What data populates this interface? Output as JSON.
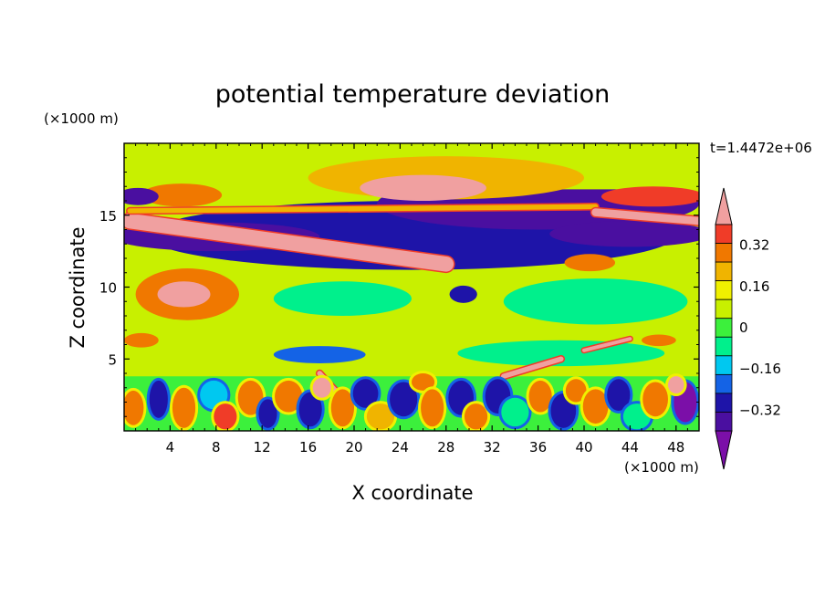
{
  "chart_data": {
    "type": "heatmap",
    "title": "potential temperature deviation",
    "xlabel": "X coordinate",
    "ylabel": "Z coordinate",
    "x_unit": "(×1000 m)",
    "y_unit": "(×1000 m)",
    "time_label": "t=1.4472e+06",
    "xlim": [
      0,
      50
    ],
    "ylim": [
      0,
      20
    ],
    "x_ticks": [
      4,
      8,
      12,
      16,
      20,
      24,
      28,
      32,
      36,
      40,
      44,
      48
    ],
    "y_ticks": [
      5,
      10,
      15
    ],
    "colorbar": {
      "levels": [
        -0.48,
        -0.4,
        -0.32,
        -0.24,
        -0.16,
        -0.08,
        0,
        0.08,
        0.16,
        0.24,
        0.32,
        0.4,
        0.48
      ],
      "colors": [
        "#7b0fa8",
        "#4a0fa0",
        "#1e14a8",
        "#1463e6",
        "#00c8f0",
        "#00f08c",
        "#3cf03c",
        "#c8f000",
        "#f0f000",
        "#f0b400",
        "#f07800",
        "#f03c28",
        "#f0a0a0"
      ],
      "labels": [
        "0.32",
        "0.16",
        "0",
        "−0.16",
        "−0.32"
      ],
      "label_values": [
        0.32,
        0.16,
        0,
        -0.16,
        -0.32
      ]
    },
    "regions": [
      {
        "shape": "band",
        "x": [
          0,
          50
        ],
        "z": [
          0,
          20
        ],
        "value": 0.04
      },
      {
        "shape": "band",
        "x": [
          0,
          50
        ],
        "z": [
          0,
          3.8
        ],
        "value": 0.0
      },
      {
        "shape": "band",
        "x": [
          0,
          50
        ],
        "z": [
          3.8,
          6.8
        ],
        "value": 0.06
      },
      {
        "shape": "ellipse",
        "cx": 25,
        "cz": 7.5,
        "rx": 11,
        "rz": 2.3,
        "value": 0.1
      },
      {
        "shape": "ellipse",
        "cx": 41,
        "cz": 9,
        "rx": 8,
        "rz": 1.6,
        "value": -0.12
      },
      {
        "shape": "ellipse",
        "cx": 19,
        "cz": 9.2,
        "rx": 6,
        "rz": 1.2,
        "value": -0.08
      },
      {
        "shape": "band",
        "x": [
          0,
          50
        ],
        "z": [
          10.6,
          11.4
        ],
        "value": 0.06
      },
      {
        "shape": "ellipse",
        "cx": 5.5,
        "cz": 9.5,
        "rx": 4.5,
        "rz": 1.8,
        "value": 0.3
      },
      {
        "shape": "ellipse",
        "cx": 5.2,
        "cz": 9.5,
        "rx": 2.3,
        "rz": 0.9,
        "value": 0.5
      },
      {
        "shape": "ellipse",
        "cx": 25,
        "cz": 13.6,
        "rx": 23,
        "rz": 2.4,
        "value": -0.34
      },
      {
        "shape": "ellipse",
        "cx": 36,
        "cz": 15.8,
        "rx": 14,
        "rz": 1.8,
        "value": -0.42
      },
      {
        "shape": "ellipse",
        "cx": 8,
        "cz": 13.5,
        "rx": 9,
        "rz": 1.0,
        "value": -0.4
      },
      {
        "shape": "ellipse",
        "cx": 44,
        "cz": 13.7,
        "rx": 7,
        "rz": 0.9,
        "value": -0.4
      },
      {
        "shape": "band",
        "x": [
          0,
          50
        ],
        "z": [
          16.8,
          20
        ],
        "value": 0.05
      },
      {
        "shape": "ellipse",
        "cx": 28,
        "cz": 17.6,
        "rx": 12,
        "rz": 1.5,
        "value": 0.2
      },
      {
        "shape": "ellipse",
        "cx": 26,
        "cz": 16.9,
        "rx": 5.5,
        "rz": 0.9,
        "value": 0.5
      },
      {
        "shape": "ellipse",
        "cx": 5,
        "cz": 16.4,
        "rx": 3.5,
        "rz": 0.8,
        "value": 0.3
      },
      {
        "shape": "ellipse",
        "cx": 1.2,
        "cz": 16.3,
        "rx": 1.8,
        "rz": 0.6,
        "value": -0.4
      },
      {
        "shape": "ellipse",
        "cx": 46,
        "cz": 16.3,
        "rx": 4.5,
        "rz": 0.7,
        "value": 0.4
      },
      {
        "shape": "ellipse",
        "cx": 40.5,
        "cz": 11.7,
        "rx": 2.2,
        "rz": 0.6,
        "value": 0.3
      },
      {
        "shape": "ellipse",
        "cx": 29.5,
        "cz": 9.5,
        "rx": 1.2,
        "rz": 0.6,
        "value": -0.35
      },
      {
        "shape": "ellipse",
        "cx": 46.5,
        "cz": 6.3,
        "rx": 1.5,
        "rz": 0.4,
        "value": 0.35
      },
      {
        "shape": "ellipse",
        "cx": 1.5,
        "cz": 6.3,
        "rx": 1.5,
        "rz": 0.5,
        "value": 0.3
      },
      {
        "shape": "ellipse",
        "cx": 38,
        "cz": 5.4,
        "rx": 9,
        "rz": 0.9,
        "value": -0.1
      },
      {
        "shape": "ellipse",
        "cx": 17,
        "cz": 5.3,
        "rx": 4,
        "rz": 0.6,
        "value": -0.2
      }
    ],
    "streaks": [
      {
        "x1": 0.5,
        "z1": 14.6,
        "x2": 28,
        "z2": 11.6,
        "width": 1.05,
        "value": 0.5
      },
      {
        "x1": 0.5,
        "z1": 15.3,
        "x2": 41,
        "z2": 15.6,
        "width": 0.35,
        "value": 0.25
      },
      {
        "x1": 41,
        "z1": 15.2,
        "x2": 50,
        "z2": 14.6,
        "width": 0.55,
        "value": 0.5
      },
      {
        "x1": 33,
        "z1": 3.8,
        "x2": 38,
        "z2": 5.0,
        "width": 0.35,
        "value": 0.45
      },
      {
        "x1": 17,
        "z1": 4.0,
        "x2": 19.5,
        "z2": 1.8,
        "width": 0.35,
        "value": 0.45
      },
      {
        "x1": 40,
        "z1": 5.6,
        "x2": 44,
        "z2": 6.4,
        "width": 0.25,
        "value": 0.45
      }
    ],
    "low_cells": [
      {
        "x": 0.8,
        "z": 1.6,
        "rx": 0.9,
        "rz": 1.2,
        "value": 0.3
      },
      {
        "x": 3.0,
        "z": 2.2,
        "rx": 0.8,
        "rz": 1.3,
        "value": -0.3
      },
      {
        "x": 5.2,
        "z": 1.6,
        "rx": 1.0,
        "rz": 1.4,
        "value": 0.35
      },
      {
        "x": 7.8,
        "z": 2.5,
        "rx": 1.2,
        "rz": 1.0,
        "value": -0.15
      },
      {
        "x": 8.8,
        "z": 1.0,
        "rx": 1.0,
        "rz": 0.9,
        "value": 0.4
      },
      {
        "x": 11.0,
        "z": 2.3,
        "rx": 1.1,
        "rz": 1.2,
        "value": 0.3
      },
      {
        "x": 12.5,
        "z": 1.2,
        "rx": 0.8,
        "rz": 1.0,
        "value": -0.35
      },
      {
        "x": 14.3,
        "z": 2.4,
        "rx": 1.2,
        "rz": 1.1,
        "value": 0.32
      },
      {
        "x": 16.2,
        "z": 1.5,
        "rx": 1.0,
        "rz": 1.2,
        "value": -0.3
      },
      {
        "x": 17.2,
        "z": 3.0,
        "rx": 0.8,
        "rz": 0.7,
        "value": 0.45
      },
      {
        "x": 19.0,
        "z": 1.6,
        "rx": 1.0,
        "rz": 1.3,
        "value": 0.3
      },
      {
        "x": 21.0,
        "z": 2.6,
        "rx": 1.1,
        "rz": 1.0,
        "value": -0.3
      },
      {
        "x": 22.3,
        "z": 1.0,
        "rx": 1.2,
        "rz": 0.9,
        "value": 0.2
      },
      {
        "x": 24.3,
        "z": 2.2,
        "rx": 1.2,
        "rz": 1.2,
        "value": -0.3
      },
      {
        "x": 26.0,
        "z": 3.4,
        "rx": 1.0,
        "rz": 0.6,
        "value": 0.35
      },
      {
        "x": 26.8,
        "z": 1.6,
        "rx": 1.0,
        "rz": 1.3,
        "value": 0.3
      },
      {
        "x": 29.3,
        "z": 2.3,
        "rx": 1.1,
        "rz": 1.2,
        "value": -0.35
      },
      {
        "x": 30.6,
        "z": 1.0,
        "rx": 1.0,
        "rz": 0.9,
        "value": 0.3
      },
      {
        "x": 32.5,
        "z": 2.4,
        "rx": 1.1,
        "rz": 1.2,
        "value": -0.3
      },
      {
        "x": 34.0,
        "z": 1.3,
        "rx": 1.2,
        "rz": 1.0,
        "value": -0.1
      },
      {
        "x": 36.2,
        "z": 2.4,
        "rx": 1.0,
        "rz": 1.1,
        "value": 0.3
      },
      {
        "x": 38.2,
        "z": 1.4,
        "rx": 1.1,
        "rz": 1.2,
        "value": -0.3
      },
      {
        "x": 39.3,
        "z": 2.8,
        "rx": 0.9,
        "rz": 0.8,
        "value": 0.35
      },
      {
        "x": 41.0,
        "z": 1.7,
        "rx": 1.1,
        "rz": 1.2,
        "value": 0.3
      },
      {
        "x": 43.0,
        "z": 2.5,
        "rx": 1.0,
        "rz": 1.1,
        "value": -0.3
      },
      {
        "x": 44.6,
        "z": 1.0,
        "rx": 1.2,
        "rz": 0.9,
        "value": -0.1
      },
      {
        "x": 46.2,
        "z": 2.2,
        "rx": 1.1,
        "rz": 1.2,
        "value": 0.3
      },
      {
        "x": 48.8,
        "z": 2.0,
        "rx": 1.0,
        "rz": 1.4,
        "value": -0.45
      },
      {
        "x": 48.0,
        "z": 3.2,
        "rx": 0.7,
        "rz": 0.6,
        "value": 0.45
      }
    ]
  }
}
